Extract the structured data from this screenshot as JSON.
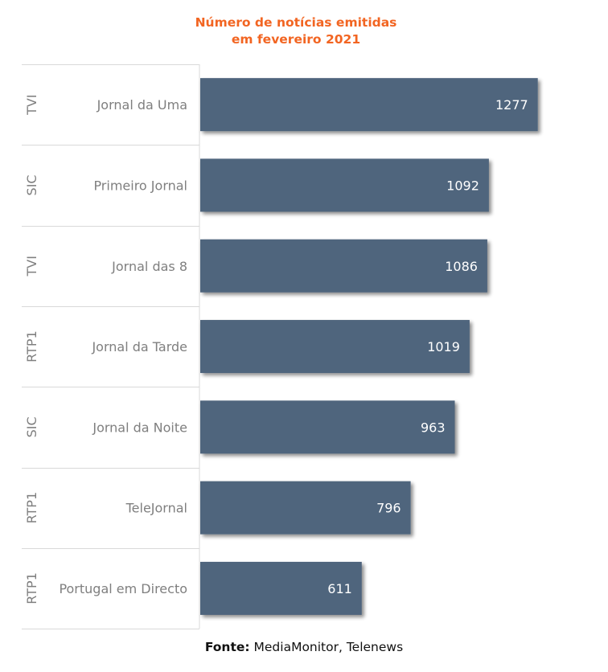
{
  "chart_data": {
    "type": "bar",
    "orientation": "horizontal",
    "title_lines": [
      "Número de notícias emitidas",
      "em fevereiro 2021"
    ],
    "categories": [
      {
        "group": "TVI",
        "label": "Jornal da Uma"
      },
      {
        "group": "SIC",
        "label": "Primeiro Jornal"
      },
      {
        "group": "TVI",
        "label": "Jornal das 8"
      },
      {
        "group": "RTP1",
        "label": "Jornal da Tarde"
      },
      {
        "group": "SIC",
        "label": "Jornal da Noite"
      },
      {
        "group": "RTP1",
        "label": "TeleJornal"
      },
      {
        "group": "RTP1",
        "label": "Portugal em Directo"
      }
    ],
    "values": [
      1277,
      1092,
      1086,
      1019,
      963,
      796,
      611
    ],
    "xlim": [
      0,
      1500
    ],
    "data_labels": true,
    "grid": false,
    "legend": "none"
  },
  "colors": {
    "bar": "#50657d",
    "title": "#f26522",
    "label": "#7f7f7f",
    "group_label": "#7f7f7f",
    "data_label": "#ffffff",
    "divider": "#d9d9d9"
  },
  "source": {
    "label": "Fonte:",
    "text": "MediaMonitor, Telenews"
  }
}
